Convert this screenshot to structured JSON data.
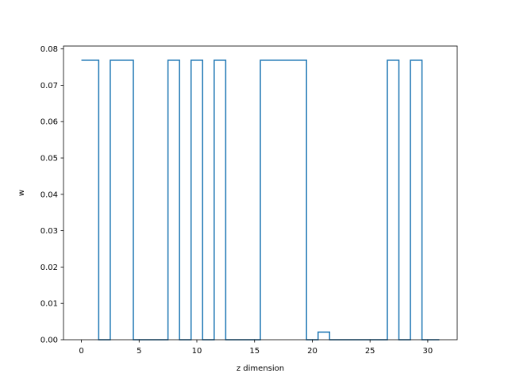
{
  "chart_data": {
    "type": "line",
    "title": "",
    "xlabel": "z dimension",
    "ylabel": "w",
    "xlim": [
      -1.55,
      32.55
    ],
    "ylim": [
      0,
      0.0808
    ],
    "grid": false,
    "step": "mid",
    "colors": {
      "series": "#1f77b4"
    },
    "x_ticks": [
      0,
      5,
      10,
      15,
      20,
      25,
      30
    ],
    "x_tick_labels": [
      "0",
      "5",
      "10",
      "15",
      "20",
      "25",
      "30"
    ],
    "y_ticks": [
      0.0,
      0.01,
      0.02,
      0.03,
      0.04,
      0.05,
      0.06,
      0.07,
      0.08
    ],
    "y_tick_labels": [
      "0.00",
      "0.01",
      "0.02",
      "0.03",
      "0.04",
      "0.05",
      "0.06",
      "0.07",
      "0.08"
    ],
    "series": [
      {
        "x": [
          0,
          1,
          2,
          3,
          4,
          5,
          6,
          7,
          8,
          9,
          10,
          11,
          12,
          13,
          14,
          15,
          16,
          17,
          18,
          19,
          20,
          21,
          22,
          23,
          24,
          25,
          26,
          27,
          28,
          29,
          30,
          31
        ],
        "y": [
          0.0769,
          0.0769,
          0,
          0.0769,
          0.0769,
          0,
          0,
          0,
          0.0769,
          0,
          0.0769,
          0,
          0.0769,
          0,
          0,
          0,
          0.0769,
          0.0769,
          0.0769,
          0.0769,
          0,
          0.0021,
          0,
          0,
          0,
          0,
          0,
          0.0769,
          0,
          0.0769,
          0,
          0
        ]
      }
    ]
  }
}
